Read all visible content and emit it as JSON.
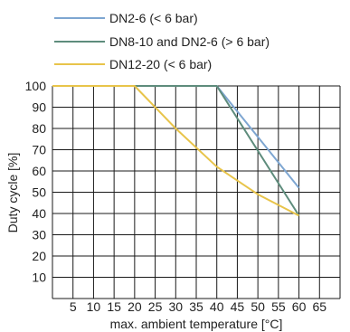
{
  "chart_data": {
    "type": "line",
    "xlabel": "max. ambient temperature [°C]",
    "ylabel": "Duty cycle [%]",
    "xlim": [
      0,
      70
    ],
    "ylim": [
      0,
      100
    ],
    "x_ticks": [
      5,
      10,
      15,
      20,
      25,
      30,
      35,
      40,
      45,
      50,
      55,
      60,
      65
    ],
    "y_ticks": [
      10,
      20,
      30,
      40,
      50,
      60,
      70,
      80,
      90,
      100
    ],
    "x_grid_step": 5,
    "y_grid_step": 10,
    "grid": true,
    "legend_position": "top",
    "series": [
      {
        "name": "DN2-6 (< 6 bar)",
        "color": "#7ea6d1",
        "x": [
          0,
          40,
          60
        ],
        "y": [
          100,
          100,
          52
        ]
      },
      {
        "name": "DN8-10 and DN2-6 (> 6 bar)",
        "color": "#5e8c7c",
        "x": [
          0,
          40,
          60
        ],
        "y": [
          100,
          100,
          39
        ]
      },
      {
        "name": "DN12-20 (< 6 bar)",
        "color": "#e8c44a",
        "x": [
          0,
          20,
          30,
          40,
          50,
          60
        ],
        "y": [
          100,
          100,
          80,
          62,
          49,
          39
        ]
      }
    ]
  }
}
